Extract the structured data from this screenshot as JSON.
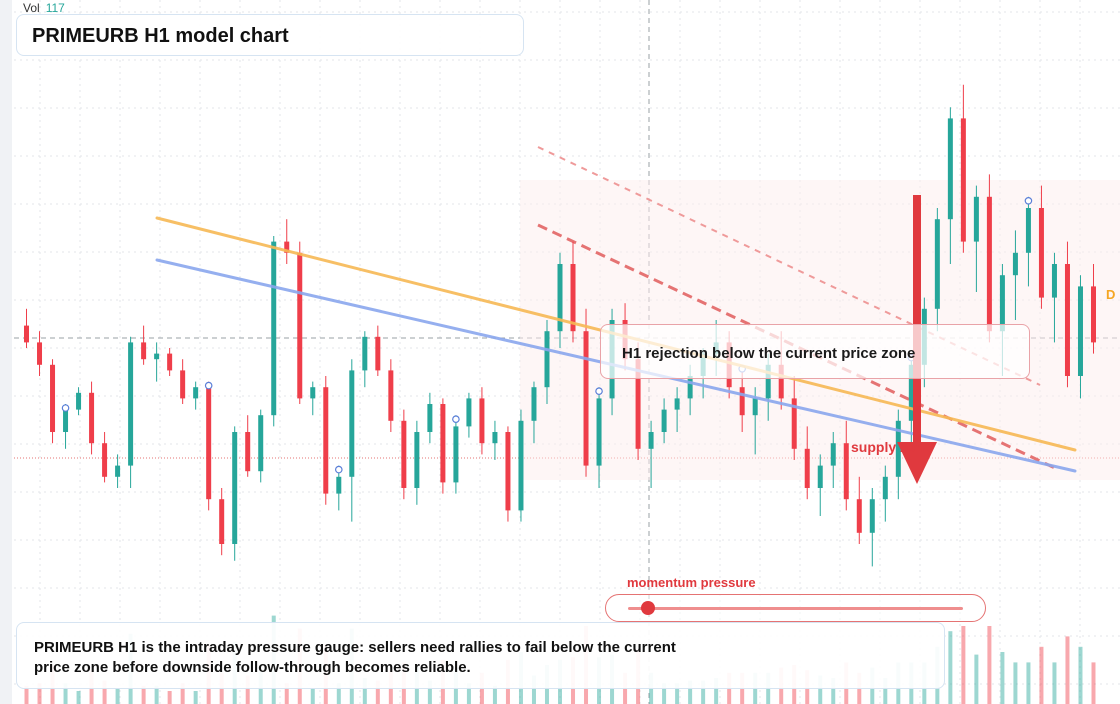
{
  "header": {
    "title": "PRIMEURB H1 model chart",
    "vol_label": "Vol",
    "vol_value": "117"
  },
  "annotations": {
    "callout": "H1 rejection below the current price zone",
    "supply_label": "supply zone",
    "momentum_label": "momentum pressure",
    "momentum_level": 0.06,
    "caption": "PRIMEURB H1 is the intraday pressure gauge: sellers need rallies to fail below the current price zone before downside follow-through becomes reliable.",
    "edge_tag": "D"
  },
  "colors": {
    "up": "#26a69a",
    "down": "#ef3e4a",
    "trend_orange": "#f7b955",
    "trend_blue": "#8aa7ee",
    "zone_red": "#e0393e",
    "grid": "#e3e6ea"
  },
  "chart_data": {
    "type": "candlestick",
    "symbol": "PRIMEURB",
    "timeframe": "H1",
    "x_axis": "bar index",
    "y_axis": "price (relative units)",
    "ylim": [
      0,
      100
    ],
    "grid": true,
    "candles": [
      {
        "o": 49,
        "h": 52,
        "l": 45,
        "c": 46
      },
      {
        "o": 46,
        "h": 48,
        "l": 40,
        "c": 42
      },
      {
        "o": 42,
        "h": 43,
        "l": 28,
        "c": 30
      },
      {
        "o": 30,
        "h": 35,
        "l": 27,
        "c": 34
      },
      {
        "o": 34,
        "h": 38,
        "l": 33,
        "c": 37
      },
      {
        "o": 37,
        "h": 39,
        "l": 26,
        "c": 28
      },
      {
        "o": 28,
        "h": 30,
        "l": 21,
        "c": 22
      },
      {
        "o": 22,
        "h": 26,
        "l": 20,
        "c": 24
      },
      {
        "o": 24,
        "h": 47,
        "l": 20,
        "c": 46
      },
      {
        "o": 46,
        "h": 49,
        "l": 42,
        "c": 43
      },
      {
        "o": 43,
        "h": 46,
        "l": 39,
        "c": 44
      },
      {
        "o": 44,
        "h": 45,
        "l": 40,
        "c": 41
      },
      {
        "o": 41,
        "h": 43,
        "l": 35,
        "c": 36
      },
      {
        "o": 36,
        "h": 39,
        "l": 34,
        "c": 38
      },
      {
        "o": 38,
        "h": 39,
        "l": 16,
        "c": 18
      },
      {
        "o": 18,
        "h": 20,
        "l": 8,
        "c": 10
      },
      {
        "o": 10,
        "h": 31,
        "l": 7,
        "c": 30
      },
      {
        "o": 30,
        "h": 33,
        "l": 22,
        "c": 23
      },
      {
        "o": 23,
        "h": 34,
        "l": 21,
        "c": 33
      },
      {
        "o": 33,
        "h": 65,
        "l": 31,
        "c": 64
      },
      {
        "o": 64,
        "h": 68,
        "l": 60,
        "c": 62
      },
      {
        "o": 62,
        "h": 64,
        "l": 35,
        "c": 36
      },
      {
        "o": 36,
        "h": 39,
        "l": 33,
        "c": 38
      },
      {
        "o": 38,
        "h": 40,
        "l": 17,
        "c": 19
      },
      {
        "o": 19,
        "h": 24,
        "l": 16,
        "c": 22
      },
      {
        "o": 22,
        "h": 43,
        "l": 14,
        "c": 41
      },
      {
        "o": 41,
        "h": 48,
        "l": 38,
        "c": 47
      },
      {
        "o": 47,
        "h": 49,
        "l": 40,
        "c": 41
      },
      {
        "o": 41,
        "h": 43,
        "l": 30,
        "c": 32
      },
      {
        "o": 32,
        "h": 34,
        "l": 18,
        "c": 20
      },
      {
        "o": 20,
        "h": 32,
        "l": 17,
        "c": 30
      },
      {
        "o": 30,
        "h": 37,
        "l": 28,
        "c": 35
      },
      {
        "o": 35,
        "h": 36,
        "l": 19,
        "c": 21
      },
      {
        "o": 21,
        "h": 33,
        "l": 19,
        "c": 31
      },
      {
        "o": 31,
        "h": 37,
        "l": 29,
        "c": 36
      },
      {
        "o": 36,
        "h": 38,
        "l": 26,
        "c": 28
      },
      {
        "o": 28,
        "h": 32,
        "l": 25,
        "c": 30
      },
      {
        "o": 30,
        "h": 31,
        "l": 14,
        "c": 16
      },
      {
        "o": 16,
        "h": 34,
        "l": 14,
        "c": 32
      },
      {
        "o": 32,
        "h": 39,
        "l": 28,
        "c": 38
      },
      {
        "o": 38,
        "h": 50,
        "l": 35,
        "c": 48
      },
      {
        "o": 48,
        "h": 62,
        "l": 45,
        "c": 60
      },
      {
        "o": 60,
        "h": 64,
        "l": 46,
        "c": 48
      },
      {
        "o": 48,
        "h": 52,
        "l": 22,
        "c": 24
      },
      {
        "o": 24,
        "h": 38,
        "l": 20,
        "c": 36
      },
      {
        "o": 36,
        "h": 52,
        "l": 33,
        "c": 50
      },
      {
        "o": 50,
        "h": 53,
        "l": 41,
        "c": 43
      },
      {
        "o": 43,
        "h": 46,
        "l": 25,
        "c": 27
      },
      {
        "o": 27,
        "h": 32,
        "l": 20,
        "c": 30
      },
      {
        "o": 30,
        "h": 36,
        "l": 28,
        "c": 34
      },
      {
        "o": 34,
        "h": 38,
        "l": 30,
        "c": 36
      },
      {
        "o": 36,
        "h": 42,
        "l": 33,
        "c": 40
      },
      {
        "o": 40,
        "h": 45,
        "l": 36,
        "c": 44
      },
      {
        "o": 44,
        "h": 50,
        "l": 40,
        "c": 46
      },
      {
        "o": 46,
        "h": 48,
        "l": 36,
        "c": 38
      },
      {
        "o": 38,
        "h": 42,
        "l": 30,
        "c": 33
      },
      {
        "o": 33,
        "h": 38,
        "l": 26,
        "c": 36
      },
      {
        "o": 36,
        "h": 44,
        "l": 32,
        "c": 42
      },
      {
        "o": 42,
        "h": 48,
        "l": 34,
        "c": 36
      },
      {
        "o": 36,
        "h": 40,
        "l": 25,
        "c": 27
      },
      {
        "o": 27,
        "h": 31,
        "l": 18,
        "c": 20
      },
      {
        "o": 20,
        "h": 26,
        "l": 15,
        "c": 24
      },
      {
        "o": 24,
        "h": 30,
        "l": 20,
        "c": 28
      },
      {
        "o": 28,
        "h": 32,
        "l": 16,
        "c": 18
      },
      {
        "o": 18,
        "h": 22,
        "l": 10,
        "c": 12
      },
      {
        "o": 12,
        "h": 20,
        "l": 6,
        "c": 18
      },
      {
        "o": 18,
        "h": 24,
        "l": 14,
        "c": 22
      },
      {
        "o": 22,
        "h": 34,
        "l": 18,
        "c": 32
      },
      {
        "o": 32,
        "h": 44,
        "l": 28,
        "c": 42
      },
      {
        "o": 42,
        "h": 54,
        "l": 38,
        "c": 52
      },
      {
        "o": 52,
        "h": 70,
        "l": 48,
        "c": 68
      },
      {
        "o": 68,
        "h": 88,
        "l": 60,
        "c": 86
      },
      {
        "o": 86,
        "h": 92,
        "l": 62,
        "c": 64
      },
      {
        "o": 64,
        "h": 74,
        "l": 55,
        "c": 72
      },
      {
        "o": 72,
        "h": 76,
        "l": 46,
        "c": 48
      },
      {
        "o": 48,
        "h": 60,
        "l": 40,
        "c": 58
      },
      {
        "o": 58,
        "h": 66,
        "l": 50,
        "c": 62
      },
      {
        "o": 62,
        "h": 72,
        "l": 56,
        "c": 70
      },
      {
        "o": 70,
        "h": 74,
        "l": 52,
        "c": 54
      },
      {
        "o": 54,
        "h": 62,
        "l": 46,
        "c": 60
      },
      {
        "o": 60,
        "h": 64,
        "l": 38,
        "c": 40
      },
      {
        "o": 40,
        "h": 58,
        "l": 36,
        "c": 56
      },
      {
        "o": 56,
        "h": 60,
        "l": 44,
        "c": 46
      }
    ],
    "trendlines": [
      {
        "name": "",
        "color": "orange",
        "from": {
          "bar": 0,
          "price": 73
        },
        "to": {
          "bar": 82,
          "price": 42
        }
      },
      {
        "name": "",
        "color": "blue",
        "from": {
          "bar": 0,
          "price": 68
        },
        "to": {
          "bar": 82,
          "price": 36
        }
      }
    ],
    "arrow": {
      "direction": "down",
      "from_price": 88,
      "to_price": 40
    }
  }
}
